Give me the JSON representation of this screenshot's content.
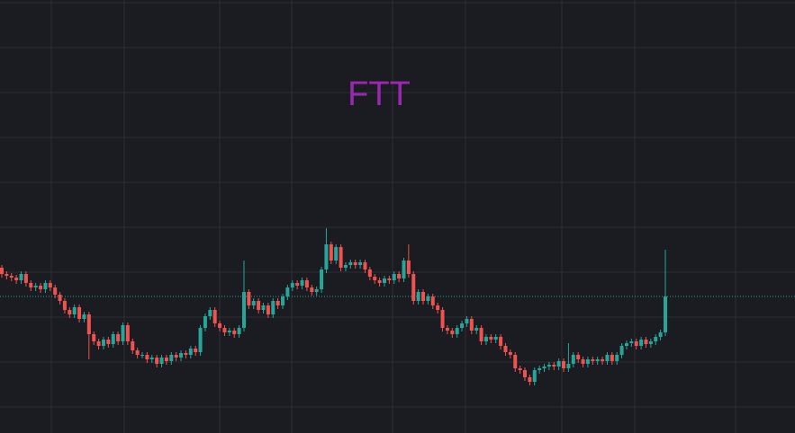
{
  "chart_data": {
    "type": "candlestick",
    "title": "FTT",
    "title_color": "#9c27b0",
    "up_color": "#26a69a",
    "down_color": "#ef5350",
    "ylim": [
      0,
      482
    ],
    "last_price_line": true,
    "open": [
      184,
      177,
      175,
      173,
      170,
      177,
      167,
      162,
      164,
      160,
      167,
      162,
      154,
      147,
      137,
      132,
      140,
      127,
      132,
      110,
      102,
      97,
      104,
      99,
      110,
      102,
      120,
      102,
      92,
      87,
      87,
      82,
      84,
      77,
      84,
      80,
      87,
      84,
      89,
      87,
      94,
      90,
      117,
      130,
      137,
      122,
      117,
      112,
      114,
      110,
      117,
      157,
      142,
      147,
      137,
      142,
      132,
      147,
      142,
      152,
      162,
      167,
      164,
      170,
      162,
      157,
      160,
      182,
      210,
      192,
      207,
      184,
      187,
      190,
      187,
      190,
      182,
      174,
      170,
      167,
      172,
      170,
      177,
      172,
      192,
      177,
      147,
      157,
      147,
      152,
      142,
      137,
      117,
      114,
      110,
      117,
      122,
      127,
      114,
      117,
      102,
      107,
      104,
      107,
      97,
      90,
      87,
      72,
      70,
      62,
      57,
      70,
      72,
      74,
      76,
      74,
      80,
      72,
      77,
      87,
      82,
      77,
      82,
      80,
      82,
      80,
      87,
      80,
      87,
      97,
      100,
      102,
      97,
      104,
      99,
      102,
      107,
      112
    ],
    "high": [
      187,
      180,
      178,
      176,
      180,
      180,
      170,
      167,
      167,
      170,
      170,
      165,
      157,
      150,
      140,
      143,
      143,
      135,
      135,
      113,
      105,
      107,
      107,
      113,
      113,
      123,
      123,
      105,
      95,
      90,
      90,
      87,
      87,
      87,
      87,
      90,
      90,
      92,
      92,
      97,
      97,
      120,
      133,
      140,
      140,
      125,
      120,
      117,
      117,
      120,
      192,
      160,
      150,
      150,
      145,
      145,
      150,
      150,
      155,
      165,
      170,
      170,
      173,
      173,
      165,
      163,
      185,
      228,
      213,
      210,
      210,
      190,
      193,
      193,
      193,
      193,
      185,
      177,
      173,
      175,
      175,
      180,
      180,
      195,
      210,
      180,
      160,
      160,
      155,
      155,
      145,
      140,
      120,
      117,
      120,
      125,
      130,
      130,
      120,
      120,
      110,
      110,
      110,
      110,
      100,
      93,
      90,
      75,
      73,
      65,
      73,
      75,
      77,
      79,
      79,
      83,
      83,
      100,
      90,
      90,
      85,
      85,
      85,
      85,
      85,
      90,
      90,
      90,
      100,
      103,
      105,
      105,
      107,
      107,
      105,
      110,
      115,
      204
    ],
    "low": [
      173,
      171,
      169,
      166,
      166,
      163,
      158,
      158,
      156,
      156,
      158,
      150,
      143,
      133,
      128,
      128,
      123,
      123,
      82,
      98,
      93,
      93,
      95,
      95,
      98,
      98,
      98,
      88,
      83,
      83,
      78,
      78,
      73,
      73,
      76,
      76,
      80,
      80,
      83,
      83,
      86,
      86,
      113,
      126,
      118,
      113,
      108,
      108,
      106,
      106,
      113,
      138,
      138,
      133,
      133,
      128,
      128,
      138,
      138,
      148,
      158,
      160,
      160,
      158,
      153,
      153,
      156,
      178,
      188,
      188,
      180,
      180,
      183,
      183,
      183,
      178,
      170,
      166,
      163,
      163,
      166,
      166,
      168,
      168,
      173,
      143,
      143,
      143,
      143,
      138,
      133,
      113,
      110,
      106,
      106,
      113,
      118,
      110,
      110,
      98,
      98,
      100,
      100,
      93,
      86,
      83,
      68,
      66,
      58,
      53,
      53,
      66,
      68,
      70,
      70,
      70,
      68,
      68,
      73,
      78,
      73,
      73,
      76,
      76,
      76,
      76,
      76,
      76,
      83,
      93,
      96,
      93,
      93,
      95,
      95,
      98,
      103,
      108
    ],
    "close": [
      177,
      175,
      173,
      170,
      177,
      167,
      162,
      164,
      160,
      167,
      162,
      154,
      147,
      137,
      132,
      140,
      127,
      132,
      110,
      102,
      97,
      104,
      99,
      110,
      102,
      120,
      102,
      92,
      87,
      87,
      82,
      84,
      77,
      84,
      80,
      87,
      84,
      89,
      87,
      94,
      90,
      117,
      130,
      137,
      122,
      117,
      112,
      114,
      110,
      117,
      157,
      142,
      147,
      137,
      142,
      132,
      147,
      142,
      152,
      162,
      167,
      164,
      170,
      162,
      157,
      160,
      182,
      210,
      192,
      207,
      184,
      187,
      190,
      187,
      190,
      182,
      174,
      170,
      167,
      172,
      170,
      177,
      172,
      192,
      177,
      147,
      157,
      147,
      152,
      142,
      137,
      117,
      114,
      110,
      117,
      122,
      127,
      114,
      117,
      102,
      107,
      104,
      107,
      97,
      90,
      87,
      72,
      70,
      62,
      57,
      70,
      72,
      74,
      76,
      74,
      80,
      72,
      77,
      87,
      82,
      77,
      82,
      80,
      82,
      80,
      87,
      80,
      87,
      97,
      100,
      102,
      97,
      104,
      99,
      102,
      107,
      112,
      152
    ]
  }
}
